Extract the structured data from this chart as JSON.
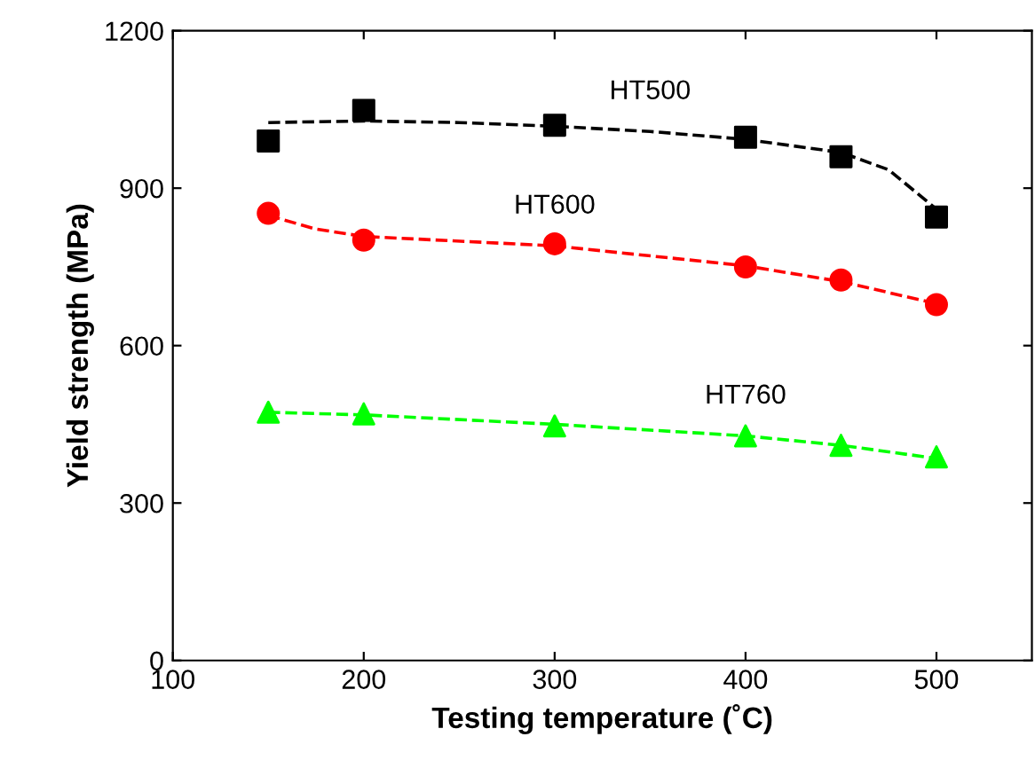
{
  "chart_data": {
    "type": "scatter",
    "xlabel": "Testing temperature (˚C)",
    "ylabel": "Yield strength (MPa)",
    "xlim": [
      100,
      550
    ],
    "xticks": [
      100,
      200,
      300,
      400,
      500
    ],
    "ylim": [
      0,
      1200
    ],
    "yticks": [
      0,
      300,
      600,
      900,
      1200
    ],
    "grid": false,
    "legend": false,
    "series": [
      {
        "marker": "square",
        "color": "#000000",
        "x": [
          150,
          200,
          300,
          400,
          450,
          500
        ],
        "values": [
          990,
          1048,
          1020,
          997,
          960,
          845
        ]
      },
      {
        "marker": "circle",
        "color": "#ff0000",
        "x": [
          150,
          200,
          300,
          400,
          450,
          500
        ],
        "values": [
          852,
          801,
          794,
          750,
          725,
          678
        ]
      },
      {
        "marker": "triangle",
        "color": "#00ff00",
        "x": [
          150,
          200,
          300,
          400,
          450,
          500
        ],
        "values": [
          473,
          470,
          447,
          428,
          410,
          388
        ]
      },
      {
        "type": "line",
        "marker": "none",
        "line_style": "dashed",
        "color": "#000000",
        "x": [
          150,
          200,
          250,
          300,
          350,
          400,
          450,
          475,
          500
        ],
        "values": [
          1025,
          1028,
          1025,
          1018,
          1008,
          993,
          968,
          935,
          860
        ]
      },
      {
        "type": "line",
        "marker": "none",
        "line_style": "dashed",
        "color": "#ff0000",
        "x": [
          150,
          175,
          200,
          300,
          400,
          450,
          500
        ],
        "values": [
          848,
          822,
          808,
          790,
          752,
          722,
          680
        ]
      },
      {
        "type": "line",
        "marker": "none",
        "line_style": "dashed",
        "color": "#00ff00",
        "x": [
          150,
          200,
          300,
          400,
          450,
          500
        ],
        "values": [
          473,
          468,
          450,
          428,
          410,
          385
        ]
      }
    ],
    "annotations": [
      "HT500",
      "HT600",
      "HT760"
    ]
  }
}
